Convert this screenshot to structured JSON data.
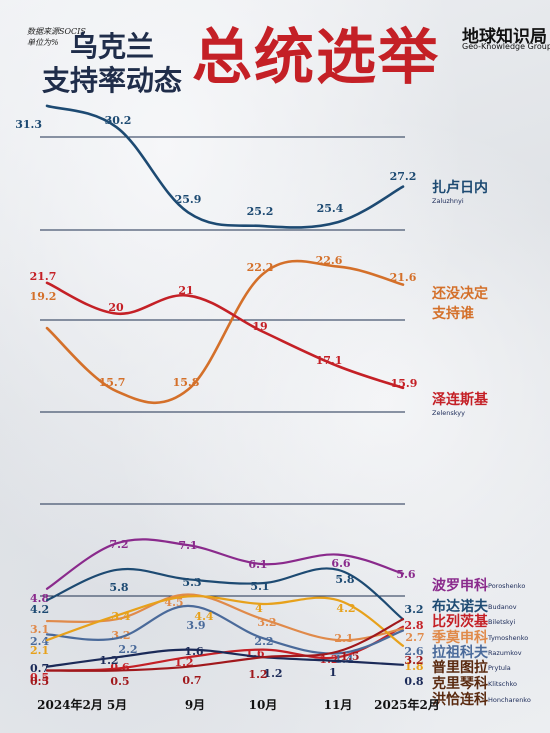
{
  "header": {
    "source_line1": "数据来源SOCIS",
    "source_line2": "单位为%",
    "subtitle_line1": "乌克兰",
    "subtitle_line2": "支持率动态",
    "title": "总统选举",
    "brand_cn": "地球知识局",
    "brand_en": "Geo-Knowledge Group"
  },
  "chart_data": [
    {
      "type": "line",
      "x": [
        "2024年2月",
        "5月",
        "9月",
        "10月",
        "11月",
        "2025年2月"
      ],
      "series": [
        {
          "name": "扎卢日内",
          "name_en": "Zaluzhnyi",
          "color": "#1d4a72",
          "values": [
            31.3,
            30.2,
            25.9,
            25.2,
            25.4,
            27.2
          ]
        }
      ]
    },
    {
      "type": "line",
      "x": [
        "2024年2月",
        "5月",
        "9月",
        "10月",
        "11月",
        "2025年2月"
      ],
      "series": [
        {
          "name": "还没决定支持谁",
          "name_line1": "还没决定",
          "name_line2": "支持谁",
          "name_en": "",
          "color": "#d4702a",
          "values": [
            19.2,
            15.7,
            15.8,
            22.2,
            22.6,
            21.6
          ]
        },
        {
          "name": "泽连斯基",
          "name_en": "Zelenskyy",
          "color": "#c42026",
          "values": [
            21.7,
            20,
            21,
            19,
            17.1,
            15.9
          ]
        }
      ]
    },
    {
      "type": "line",
      "x": [
        "2024年2月",
        "5月",
        "9月",
        "10月",
        "11月",
        "2025年2月"
      ],
      "series": [
        {
          "name": "波罗申科",
          "name_en": "Poroshenko",
          "color": "#8a2a8c",
          "values": [
            4.8,
            7.2,
            7.1,
            6.1,
            6.6,
            5.6
          ]
        },
        {
          "name": "布达诺夫",
          "name_en": "Budanov",
          "color": "#1d4a72",
          "values": [
            4.2,
            5.8,
            5.3,
            5.1,
            5.8,
            3.2
          ]
        },
        {
          "name": "比列茨基",
          "name_en": "Biletskyi",
          "color": "#c42026",
          "values": [
            0.5,
            0.6,
            1.2,
            1.6,
            1.2,
            2.8
          ]
        },
        {
          "name": "季莫申科",
          "name_en": "Tymoshenko",
          "color": "#e08a4a",
          "values": [
            3.1,
            3.2,
            4.5,
            3.2,
            2.1,
            2.7
          ]
        },
        {
          "name": "拉祖科夫",
          "name_en": "Razumkov",
          "color": "#4a6a9a",
          "values": [
            2.4,
            2.2,
            3.9,
            2.2,
            1.4,
            2.6
          ]
        },
        {
          "name": "普里图拉",
          "name_en": "Prytula",
          "color": "#e7a11b",
          "values": [
            2.1,
            3.4,
            4.4,
            4,
            4.2,
            1.8
          ]
        },
        {
          "name": "克里琴科",
          "name_en": "Klitschko",
          "color": "#1b2a58",
          "values": [
            0.7,
            1.2,
            1.6,
            1.2,
            1.0,
            0.8
          ]
        },
        {
          "name": "洪恰连科",
          "name_en": "Honcharenko",
          "color": "#a0181c",
          "values": [
            0.5,
            0.5,
            0.7,
            1.2,
            1.5,
            3.2
          ]
        }
      ]
    }
  ],
  "axis": {
    "ticks": [
      "2024年2月",
      "5月",
      "9月",
      "10月",
      "11月",
      "2025年2月"
    ]
  }
}
